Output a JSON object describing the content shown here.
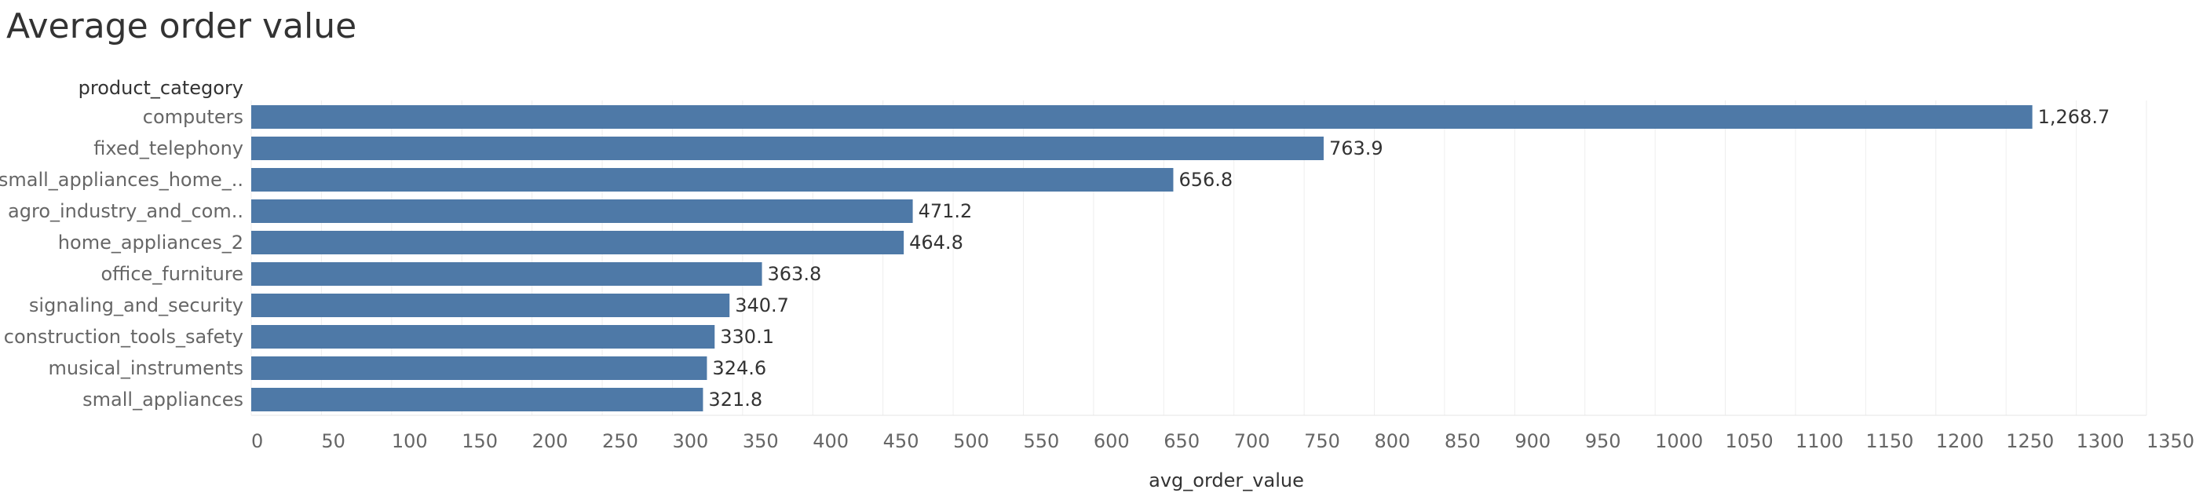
{
  "page": {
    "title": "Average order value"
  },
  "chart_data": {
    "type": "bar",
    "orientation": "horizontal",
    "title": "Average order value",
    "ylabel": "product_category",
    "xlabel": "avg_order_value",
    "categories": [
      "computers",
      "fixed_telephony",
      "small_appliances_home_..",
      "agro_industry_and_com..",
      "home_appliances_2",
      "office_furniture",
      "signaling_and_security",
      "construction_tools_safety",
      "musical_instruments",
      "small_appliances"
    ],
    "values": [
      1268.7,
      763.9,
      656.8,
      471.2,
      464.8,
      363.8,
      340.7,
      330.1,
      324.6,
      321.8
    ],
    "value_labels": [
      "1,268.7",
      "763.9",
      "656.8",
      "471.2",
      "464.8",
      "363.8",
      "340.7",
      "330.1",
      "324.6",
      "321.8"
    ],
    "xlim": [
      0,
      1350
    ],
    "xticks": [
      0,
      50,
      100,
      150,
      200,
      250,
      300,
      350,
      400,
      450,
      500,
      550,
      600,
      650,
      700,
      750,
      800,
      850,
      900,
      950,
      1000,
      1050,
      1100,
      1150,
      1200,
      1250,
      1300,
      1350
    ],
    "grid": true,
    "bar_color": "#4e79a7"
  }
}
